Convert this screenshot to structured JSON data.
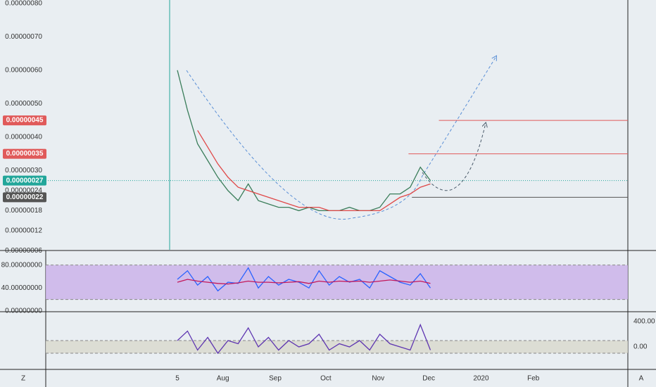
{
  "chart_data": [
    {
      "type": "line",
      "x": [
        4,
        10,
        16,
        22,
        28,
        34,
        40,
        46,
        52,
        58,
        64,
        70,
        76,
        82,
        88,
        94,
        100,
        106,
        112,
        118,
        124,
        130,
        136,
        142,
        148,
        154
      ],
      "series": [
        {
          "color": "#3a7d5a",
          "values": [
            6e-07,
            4.8e-07,
            3.8e-07,
            3.3e-07,
            2.8e-07,
            2.4e-07,
            2.1e-07,
            2.6e-07,
            2.1e-07,
            2e-07,
            1.9e-07,
            1.9e-07,
            1.8e-07,
            1.9e-07,
            1.8e-07,
            1.8e-07,
            1.8e-07,
            1.9e-07,
            1.8e-07,
            1.8e-07,
            1.9e-07,
            2.3e-07,
            2.3e-07,
            2.5e-07,
            3.1e-07,
            2.7e-07
          ]
        },
        {
          "color": "#e04848",
          "values": [
            null,
            null,
            4.2e-07,
            3.7e-07,
            3.2e-07,
            2.8e-07,
            2.5e-07,
            2.4e-07,
            2.3e-07,
            2.2e-07,
            2.1e-07,
            2e-07,
            1.9e-07,
            1.9e-07,
            1.9e-07,
            1.8e-07,
            1.8e-07,
            1.8e-07,
            1.8e-07,
            1.8e-07,
            1.8e-07,
            2e-07,
            2.2e-07,
            2.3e-07,
            2.5e-07,
            2.6e-07
          ]
        }
      ],
      "xlim": [
        -74,
        271
      ],
      "xticks": [
        {
          "value": 4,
          "label": "5"
        },
        {
          "value": 31,
          "label": "Aug"
        },
        {
          "value": 62,
          "label": "Sep"
        },
        {
          "value": 92,
          "label": "Oct"
        },
        {
          "value": 123,
          "label": "Nov"
        },
        {
          "value": 153,
          "label": "Dec"
        },
        {
          "value": 184,
          "label": "2020"
        },
        {
          "value": 215,
          "label": "Feb"
        }
      ],
      "ylim": [
        6.3e-08,
        8.1e-07
      ],
      "yticks": [
        {
          "value": 8e-07,
          "label": "0.00000080"
        },
        {
          "value": 7e-07,
          "label": "0.00000070"
        },
        {
          "value": 6e-07,
          "label": "0.00000060"
        },
        {
          "value": 5e-07,
          "label": "0.00000050"
        },
        {
          "value": 4e-07,
          "label": "0.00000040"
        },
        {
          "value": 3e-07,
          "label": "0.00000030"
        },
        {
          "value": 2.4e-07,
          "label": "0.00000024"
        },
        {
          "value": 1.8e-07,
          "label": "0.00000018"
        },
        {
          "value": 1.2e-07,
          "label": "0.00000012"
        },
        {
          "value": 6e-08,
          "label": "0.00000006"
        }
      ],
      "levels": [
        {
          "value": 4.5e-07,
          "label": "0.00000045",
          "color": "#e05a5a",
          "x": 159
        },
        {
          "value": 3.5e-07,
          "label": "0.00000035",
          "color": "#e05a5a",
          "x": 141
        },
        {
          "value": 2.7e-07,
          "label": "0.00000027",
          "color": "#22a69a"
        },
        {
          "value": 2.2e-07,
          "label": "0.00000022",
          "color": "#555555",
          "x": 143
        }
      ]
    },
    {
      "type": "line",
      "x": [
        4,
        10,
        16,
        22,
        28,
        34,
        40,
        46,
        52,
        58,
        64,
        70,
        76,
        82,
        88,
        94,
        100,
        106,
        112,
        118,
        124,
        130,
        136,
        142,
        148,
        154
      ],
      "series": [
        {
          "color": "#2962ff",
          "values": [
            55,
            70,
            45,
            60,
            35,
            50,
            48,
            75,
            40,
            60,
            45,
            55,
            50,
            40,
            70,
            45,
            60,
            50,
            55,
            40,
            70,
            60,
            50,
            45,
            65,
            40
          ]
        },
        {
          "color": "#c2185b",
          "values": [
            50,
            55,
            52,
            50,
            48,
            47,
            49,
            52,
            50,
            50,
            49,
            50,
            51,
            48,
            52,
            50,
            52,
            51,
            52,
            50,
            52,
            54,
            52,
            50,
            52,
            48
          ]
        }
      ],
      "ylim": [
        0,
        104
      ],
      "band": [
        20,
        80
      ],
      "yticks": [
        {
          "value": 80,
          "label": "80.00000000"
        },
        {
          "value": 40,
          "label": "40.00000000"
        },
        {
          "value": 0,
          "label": "0.00000000"
        }
      ]
    },
    {
      "type": "line",
      "x": [
        4,
        10,
        16,
        22,
        28,
        34,
        40,
        46,
        52,
        58,
        64,
        70,
        76,
        82,
        88,
        94,
        100,
        106,
        112,
        118,
        124,
        130,
        136,
        142,
        148,
        154
      ],
      "series": [
        {
          "color": "#5e35b1",
          "values": [
            100,
            250,
            -50,
            150,
            -100,
            100,
            50,
            300,
            0,
            150,
            -50,
            100,
            0,
            50,
            200,
            -50,
            50,
            0,
            100,
            -50,
            200,
            50,
            0,
            -50,
            350,
            -50
          ]
        }
      ],
      "ylim": [
        -344,
        533
      ],
      "band": [
        -100,
        100
      ],
      "yaxis_side": "right",
      "yticks": [
        {
          "value": 400,
          "label": "400.00"
        },
        {
          "value": 0,
          "label": "0.00"
        }
      ]
    }
  ],
  "footer": {
    "left": "Z",
    "right": "A"
  }
}
